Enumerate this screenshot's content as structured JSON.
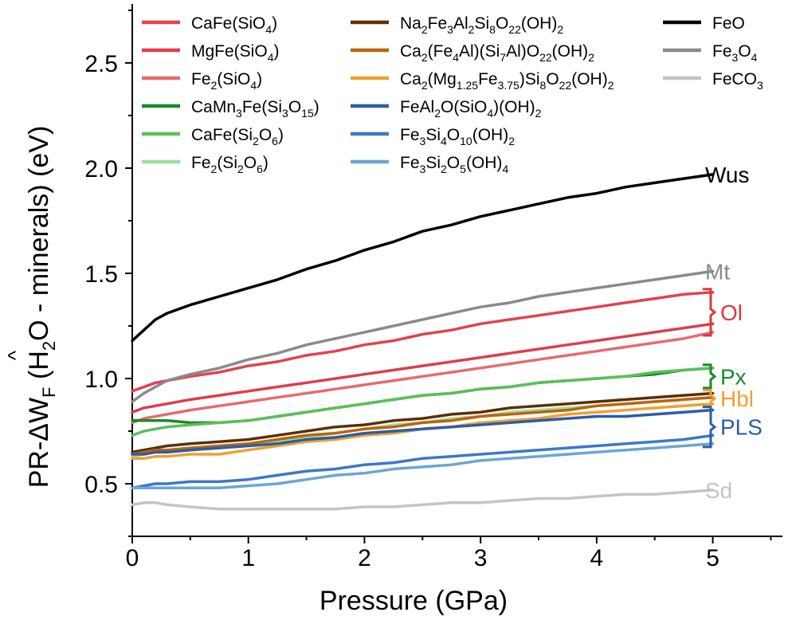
{
  "chart_data": {
    "type": "line",
    "xlabel": "Pressure (GPa)",
    "ylabel": {
      "prefix": "PR-ΔW",
      "sub_f": "F",
      "hat": "^",
      "mid": " (H",
      "sub_2": "2",
      "suffix": "O - minerals) (eV)"
    },
    "xlim": [
      0,
      5.6
    ],
    "ylim": [
      0.25,
      2.78
    ],
    "xticks": [
      0,
      1,
      2,
      3,
      4,
      5
    ],
    "yticks": [
      0.5,
      1.0,
      1.5,
      2.0,
      2.5
    ],
    "ytick_labels": [
      "0.5",
      "1.0",
      "1.5",
      "2.0",
      "2.5"
    ],
    "x": [
      0,
      0.1,
      0.2,
      0.3,
      0.5,
      0.75,
      1.0,
      1.25,
      1.5,
      1.75,
      2.0,
      2.25,
      2.5,
      2.75,
      3.0,
      3.25,
      3.5,
      3.75,
      4.0,
      4.25,
      4.5,
      4.75,
      5.0
    ],
    "series": [
      {
        "name": "CaFe(SiO4)",
        "label": [
          {
            "t": "CaFe(SiO"
          },
          {
            "t": "4",
            "s": 1
          },
          {
            "t": ")"
          }
        ],
        "color": "#e0434f",
        "values": [
          0.94,
          0.96,
          0.98,
          0.99,
          1.01,
          1.03,
          1.06,
          1.08,
          1.11,
          1.13,
          1.16,
          1.18,
          1.21,
          1.23,
          1.26,
          1.28,
          1.3,
          1.32,
          1.34,
          1.36,
          1.38,
          1.4,
          1.41
        ]
      },
      {
        "name": "MgFe(SiO4)",
        "label": [
          {
            "t": "MgFe(SiO"
          },
          {
            "t": "4",
            "s": 1
          },
          {
            "t": ")"
          }
        ],
        "color": "#dc3f4d",
        "values": [
          0.84,
          0.86,
          0.87,
          0.88,
          0.9,
          0.92,
          0.94,
          0.96,
          0.98,
          1.0,
          1.02,
          1.04,
          1.06,
          1.08,
          1.1,
          1.12,
          1.14,
          1.16,
          1.18,
          1.2,
          1.22,
          1.24,
          1.26
        ]
      },
      {
        "name": "Fe2(SiO4)",
        "label": [
          {
            "t": "Fe"
          },
          {
            "t": "2",
            "s": 1
          },
          {
            "t": "(SiO"
          },
          {
            "t": "4",
            "s": 1
          },
          {
            "t": ")"
          }
        ],
        "color": "#e66a70",
        "values": [
          0.79,
          0.81,
          0.82,
          0.83,
          0.85,
          0.87,
          0.89,
          0.91,
          0.93,
          0.95,
          0.97,
          0.99,
          1.01,
          1.03,
          1.05,
          1.07,
          1.09,
          1.11,
          1.13,
          1.15,
          1.17,
          1.19,
          1.22
        ]
      },
      {
        "name": "CaMn3Fe(Si3O15)",
        "label": [
          {
            "t": "CaMn"
          },
          {
            "t": "3",
            "s": 1
          },
          {
            "t": "Fe(Si"
          },
          {
            "t": "3",
            "s": 1
          },
          {
            "t": "O"
          },
          {
            "t": "15",
            "s": 1
          },
          {
            "t": ")"
          }
        ],
        "color": "#1a8a2a",
        "values": [
          0.8,
          0.8,
          0.8,
          0.8,
          0.79,
          0.79,
          0.8,
          0.82,
          0.84,
          0.86,
          0.88,
          0.9,
          0.92,
          0.93,
          0.95,
          0.96,
          0.98,
          0.99,
          1.0,
          1.01,
          1.02,
          1.04,
          1.05
        ]
      },
      {
        "name": "CaFe(Si2O6)",
        "label": [
          {
            "t": "CaFe(Si"
          },
          {
            "t": "2",
            "s": 1
          },
          {
            "t": "O"
          },
          {
            "t": "6",
            "s": 1
          },
          {
            "t": ")"
          }
        ],
        "color": "#5bbf5b",
        "values": [
          0.73,
          0.75,
          0.76,
          0.77,
          0.78,
          0.79,
          0.8,
          0.82,
          0.84,
          0.86,
          0.88,
          0.9,
          0.92,
          0.93,
          0.95,
          0.96,
          0.98,
          0.99,
          1.0,
          1.01,
          1.03,
          1.04,
          1.05
        ]
      },
      {
        "name": "Fe2(Si2O6)",
        "label": [
          {
            "t": "Fe"
          },
          {
            "t": "2",
            "s": 1
          },
          {
            "t": "(Si"
          },
          {
            "t": "2",
            "s": 1
          },
          {
            "t": "O"
          },
          {
            "t": "6",
            "s": 1
          },
          {
            "t": ")"
          }
        ],
        "color": "#9be09b",
        "values": [
          0.63,
          0.64,
          0.65,
          0.65,
          0.66,
          0.67,
          0.69,
          0.7,
          0.72,
          0.74,
          0.76,
          0.78,
          0.79,
          0.81,
          0.82,
          0.84,
          0.85,
          0.86,
          0.87,
          0.88,
          0.89,
          0.9,
          0.91
        ]
      },
      {
        "name": "Na2Fe3Al2Si8O22(OH)2",
        "label": [
          {
            "t": "Na"
          },
          {
            "t": "2",
            "s": 1
          },
          {
            "t": "Fe"
          },
          {
            "t": "3",
            "s": 1
          },
          {
            "t": "Al"
          },
          {
            "t": "2",
            "s": 1
          },
          {
            "t": "Si"
          },
          {
            "t": "8",
            "s": 1
          },
          {
            "t": "O"
          },
          {
            "t": "22",
            "s": 1
          },
          {
            "t": "(OH)"
          },
          {
            "t": "2",
            "s": 1
          }
        ],
        "color": "#5a3008",
        "values": [
          0.65,
          0.66,
          0.67,
          0.68,
          0.69,
          0.7,
          0.71,
          0.73,
          0.75,
          0.77,
          0.78,
          0.8,
          0.81,
          0.83,
          0.84,
          0.86,
          0.87,
          0.88,
          0.89,
          0.9,
          0.91,
          0.92,
          0.93
        ]
      },
      {
        "name": "Ca2(Fe4Al)(Si7Al)O22(OH)2",
        "label": [
          {
            "t": "Ca"
          },
          {
            "t": "2",
            "s": 1
          },
          {
            "t": "(Fe"
          },
          {
            "t": "4",
            "s": 1
          },
          {
            "t": "Al)(Si"
          },
          {
            "t": "7",
            "s": 1
          },
          {
            "t": "Al)O"
          },
          {
            "t": "22",
            "s": 1
          },
          {
            "t": "(OH)"
          },
          {
            "t": "2",
            "s": 1
          }
        ],
        "color": "#c0620c",
        "values": [
          0.64,
          0.65,
          0.66,
          0.66,
          0.67,
          0.68,
          0.69,
          0.71,
          0.73,
          0.74,
          0.76,
          0.77,
          0.79,
          0.8,
          0.82,
          0.83,
          0.84,
          0.85,
          0.87,
          0.88,
          0.89,
          0.9,
          0.91
        ]
      },
      {
        "name": "Ca2(Mg1.25Fe3.75)Si8O22(OH)2",
        "label": [
          {
            "t": "Ca"
          },
          {
            "t": "2",
            "s": 1
          },
          {
            "t": "(Mg"
          },
          {
            "t": "1.25",
            "s": 1
          },
          {
            "t": "Fe"
          },
          {
            "t": "3.75",
            "s": 1
          },
          {
            "t": ")Si"
          },
          {
            "t": "8",
            "s": 1
          },
          {
            "t": "O"
          },
          {
            "t": "22",
            "s": 1
          },
          {
            "t": "(OH)"
          },
          {
            "t": "2",
            "s": 1
          }
        ],
        "color": "#f0a030",
        "values": [
          0.62,
          0.62,
          0.63,
          0.63,
          0.64,
          0.64,
          0.66,
          0.68,
          0.7,
          0.71,
          0.73,
          0.74,
          0.76,
          0.77,
          0.79,
          0.8,
          0.81,
          0.83,
          0.84,
          0.85,
          0.86,
          0.87,
          0.88
        ]
      },
      {
        "name": "FeAl2O(SiO4)(OH)2",
        "label": [
          {
            "t": "FeAl"
          },
          {
            "t": "2",
            "s": 1
          },
          {
            "t": "O(SiO"
          },
          {
            "t": "4",
            "s": 1
          },
          {
            "t": ")(OH)"
          },
          {
            "t": "2",
            "s": 1
          }
        ],
        "color": "#2a5ea8",
        "values": [
          0.64,
          0.64,
          0.65,
          0.65,
          0.66,
          0.67,
          0.68,
          0.69,
          0.71,
          0.72,
          0.74,
          0.75,
          0.76,
          0.77,
          0.78,
          0.79,
          0.8,
          0.81,
          0.82,
          0.82,
          0.83,
          0.84,
          0.85
        ]
      },
      {
        "name": "Fe3Si4O10(OH)2",
        "label": [
          {
            "t": "Fe"
          },
          {
            "t": "3",
            "s": 1
          },
          {
            "t": "Si"
          },
          {
            "t": "4",
            "s": 1
          },
          {
            "t": "O"
          },
          {
            "t": "10",
            "s": 1
          },
          {
            "t": "(OH)"
          },
          {
            "t": "2",
            "s": 1
          }
        ],
        "color": "#3c78c8",
        "values": [
          0.48,
          0.49,
          0.5,
          0.5,
          0.51,
          0.51,
          0.52,
          0.54,
          0.56,
          0.57,
          0.59,
          0.6,
          0.62,
          0.63,
          0.64,
          0.65,
          0.66,
          0.67,
          0.68,
          0.69,
          0.7,
          0.71,
          0.73
        ]
      },
      {
        "name": "Fe3Si2O5(OH)4",
        "label": [
          {
            "t": "Fe"
          },
          {
            "t": "3",
            "s": 1
          },
          {
            "t": "Si"
          },
          {
            "t": "2",
            "s": 1
          },
          {
            "t": "O"
          },
          {
            "t": "5",
            "s": 1
          },
          {
            "t": "(OH)"
          },
          {
            "t": "4",
            "s": 1
          }
        ],
        "color": "#6aa6d8",
        "values": [
          0.48,
          0.48,
          0.48,
          0.48,
          0.48,
          0.48,
          0.49,
          0.5,
          0.52,
          0.54,
          0.55,
          0.57,
          0.58,
          0.59,
          0.61,
          0.62,
          0.63,
          0.64,
          0.65,
          0.66,
          0.67,
          0.68,
          0.69
        ]
      },
      {
        "name": "FeO",
        "label": [
          {
            "t": "FeO"
          }
        ],
        "color": "#000000",
        "values": [
          1.18,
          1.23,
          1.28,
          1.31,
          1.35,
          1.39,
          1.43,
          1.47,
          1.52,
          1.56,
          1.61,
          1.65,
          1.7,
          1.73,
          1.77,
          1.8,
          1.83,
          1.86,
          1.88,
          1.91,
          1.93,
          1.95,
          1.97
        ]
      },
      {
        "name": "Fe3O4",
        "label": [
          {
            "t": "Fe"
          },
          {
            "t": "3",
            "s": 1
          },
          {
            "t": "O"
          },
          {
            "t": "4",
            "s": 1
          }
        ],
        "color": "#8a8a8a",
        "values": [
          0.89,
          0.93,
          0.96,
          0.99,
          1.02,
          1.05,
          1.09,
          1.12,
          1.16,
          1.19,
          1.22,
          1.25,
          1.28,
          1.31,
          1.34,
          1.36,
          1.39,
          1.41,
          1.43,
          1.45,
          1.47,
          1.49,
          1.51
        ]
      },
      {
        "name": "FeCO3",
        "label": [
          {
            "t": "FeCO"
          },
          {
            "t": "3",
            "s": 1
          }
        ],
        "color": "#c4c4c4",
        "values": [
          0.4,
          0.41,
          0.41,
          0.4,
          0.39,
          0.38,
          0.38,
          0.38,
          0.38,
          0.38,
          0.39,
          0.39,
          0.4,
          0.41,
          0.41,
          0.42,
          0.43,
          0.43,
          0.44,
          0.45,
          0.45,
          0.46,
          0.47
        ]
      }
    ],
    "annotations": [
      {
        "text": "Wus",
        "color": "#000000",
        "y": 1.97
      },
      {
        "text": "Mt",
        "color": "#8a8a8a",
        "y": 1.51
      },
      {
        "text": "Sd",
        "color": "#c4c4c4",
        "y": 0.47
      }
    ],
    "groups": [
      {
        "text": "Ol",
        "color": "#d93a3a",
        "y_low": 1.22,
        "y_high": 1.41
      },
      {
        "text": "Px",
        "color": "#1a8a2a",
        "y_low": 0.97,
        "y_high": 1.05
      },
      {
        "text": "Hbl",
        "color": "#f0a030",
        "y_low": 0.88,
        "y_high": 0.93
      },
      {
        "text": "PLS",
        "color": "#2a5ea8",
        "y_low": 0.69,
        "y_high": 0.85
      }
    ],
    "legend": {
      "placement": "top",
      "columns": 3
    },
    "grid": false
  }
}
